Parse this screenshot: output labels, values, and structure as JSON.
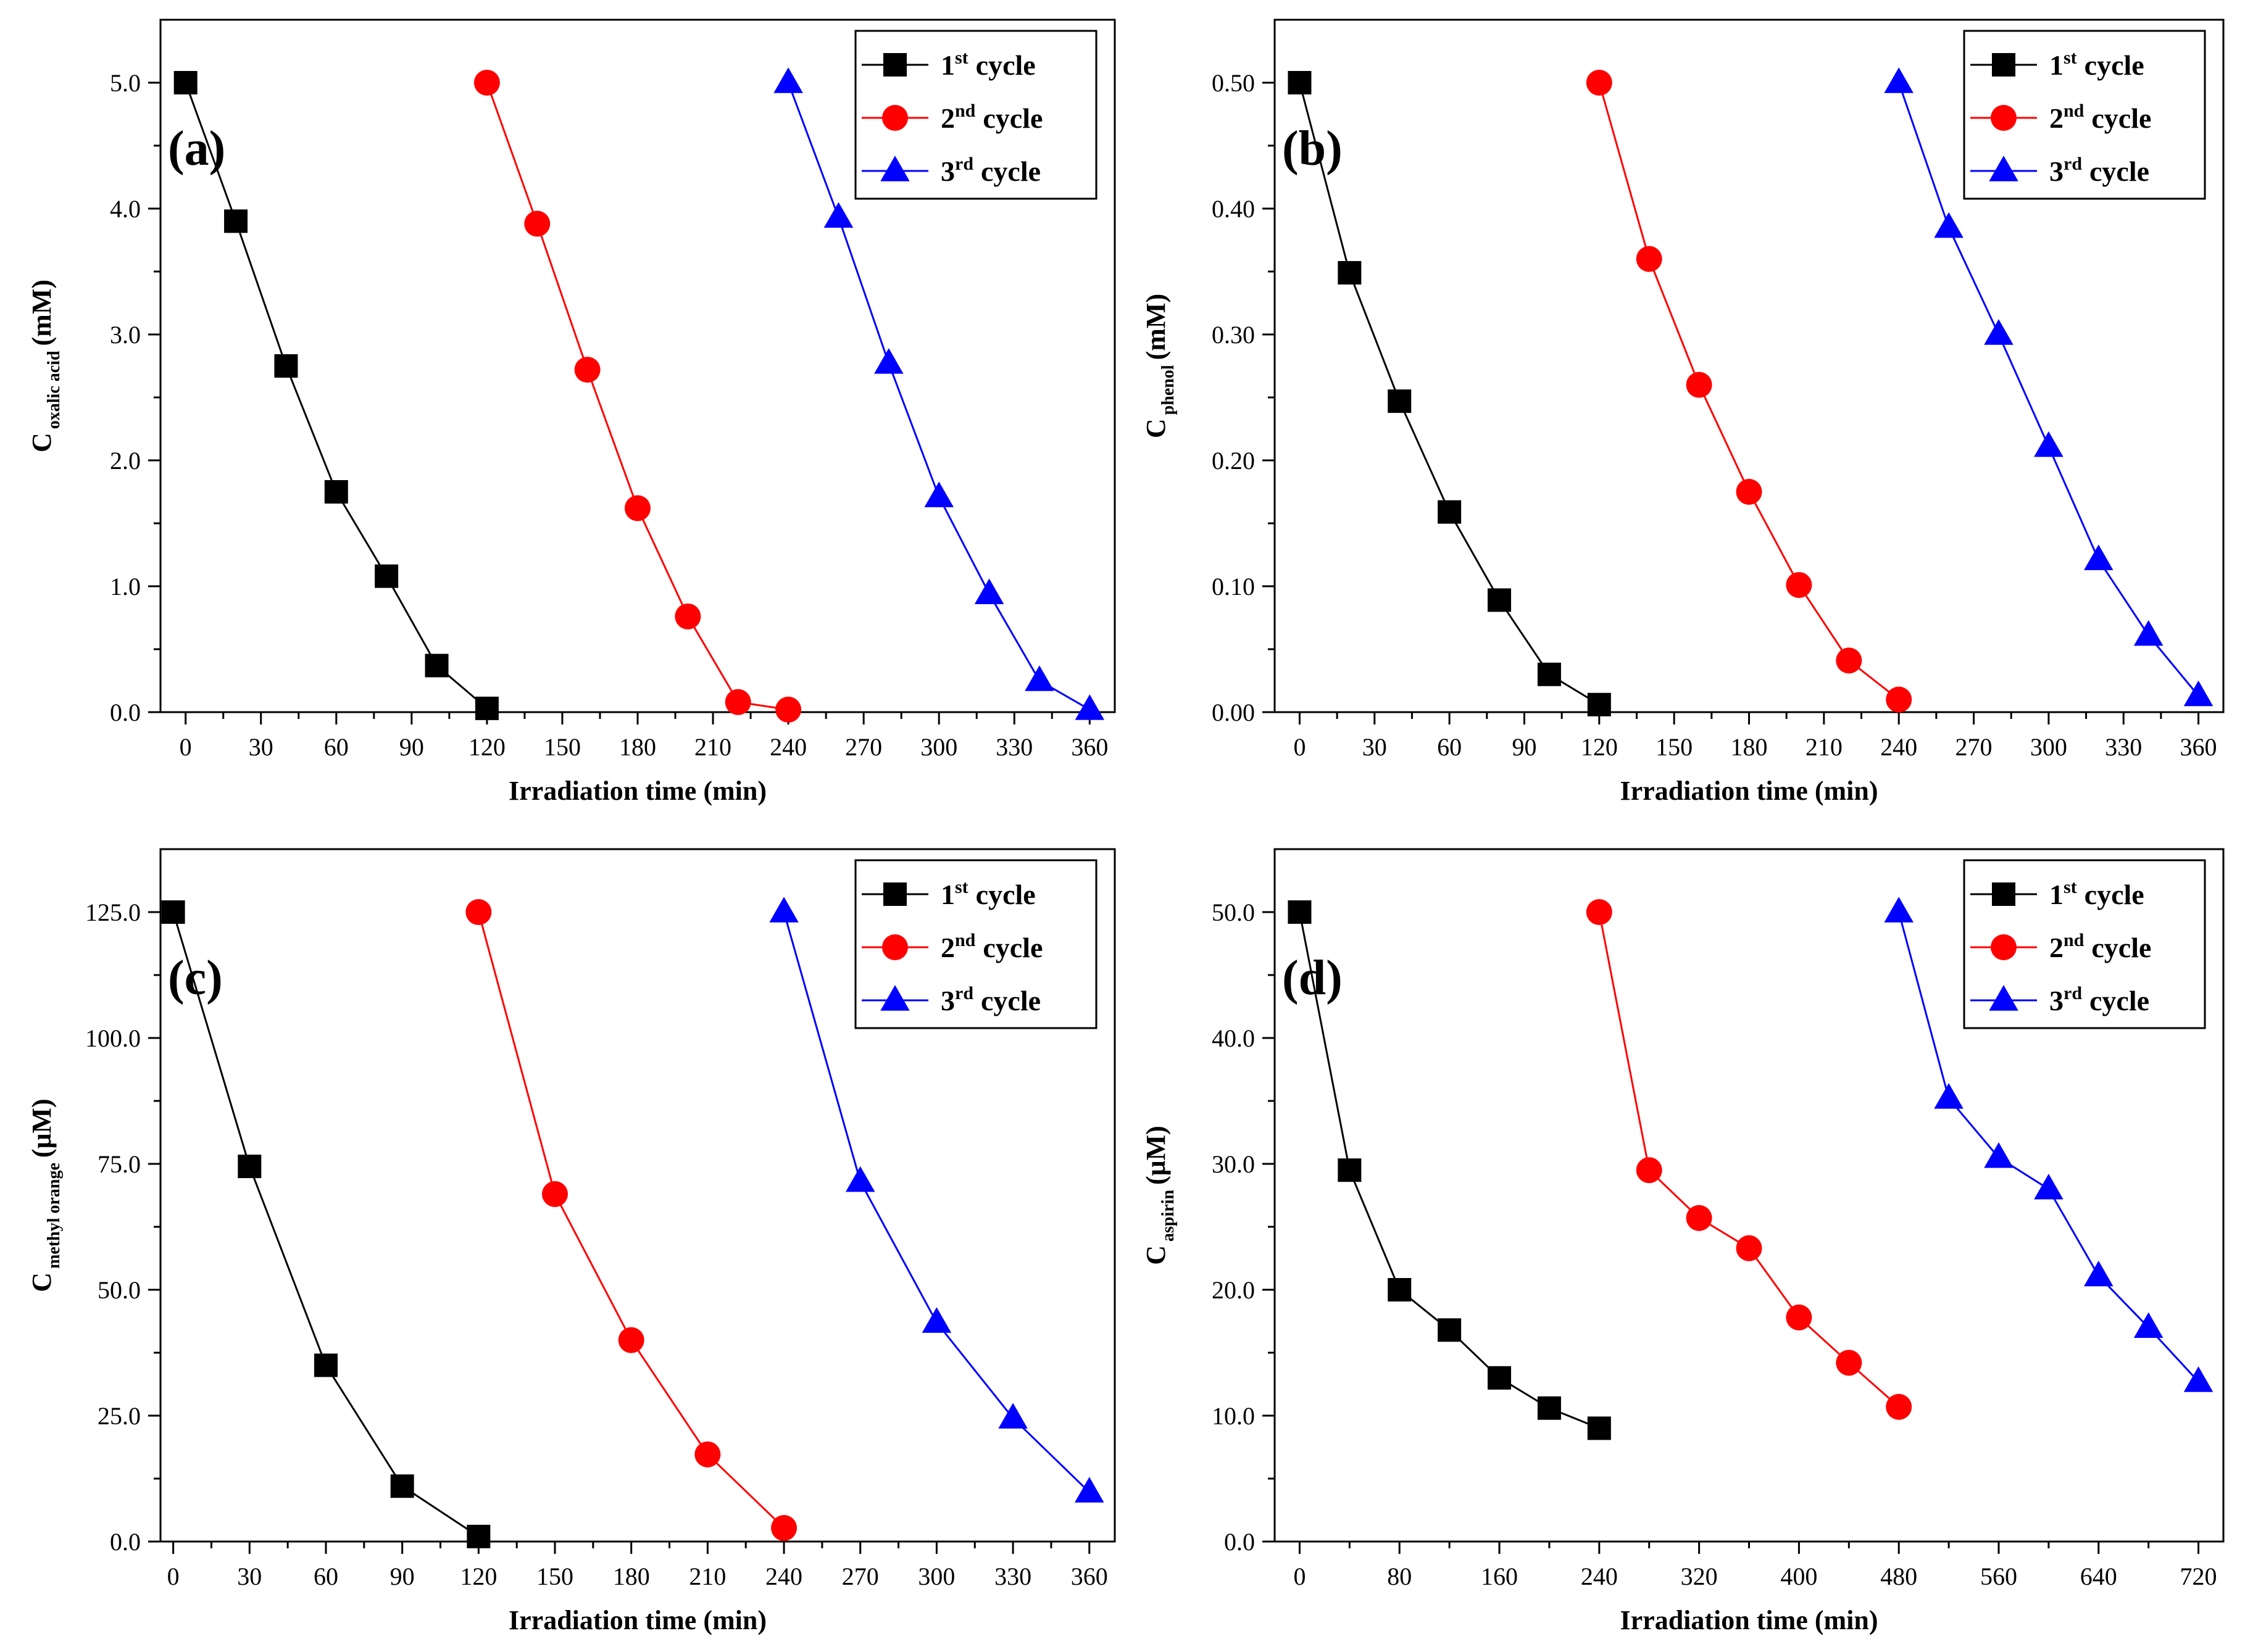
{
  "chart_data": [
    {
      "type": "line",
      "panel_label": "(a)",
      "xlabel": "Irradiation time (min)",
      "ylabel": {
        "main": "C",
        "sub": "oxalic acid",
        "unit": "(mM)"
      },
      "xlim": [
        -10,
        370
      ],
      "ylim": [
        0,
        5.5
      ],
      "xticks": [
        "0",
        "30",
        "60",
        "90",
        "120",
        "150",
        "180",
        "210",
        "240",
        "270",
        "300",
        "330",
        "360"
      ],
      "xtick_values": [
        0,
        30,
        60,
        90,
        120,
        150,
        180,
        210,
        240,
        270,
        300,
        330,
        360
      ],
      "yticks": [
        "0.0",
        "1.0",
        "2.0",
        "3.0",
        "4.0",
        "5.0"
      ],
      "ytick_values": [
        0,
        1,
        2,
        3,
        4,
        5
      ],
      "legend_position": "top-right",
      "series": [
        {
          "name": "1st cycle",
          "ordinal": "1",
          "sup": "st",
          "word": "cycle",
          "color": "#000000",
          "marker": "square",
          "x": [
            0,
            20,
            40,
            60,
            80,
            100,
            120
          ],
          "y": [
            5.0,
            3.9,
            2.75,
            1.75,
            1.08,
            0.37,
            0.03
          ]
        },
        {
          "name": "2nd cycle",
          "ordinal": "2",
          "sup": "nd",
          "word": "cycle",
          "color": "#ff0000",
          "marker": "circle",
          "x": [
            120,
            140,
            160,
            180,
            200,
            220,
            240
          ],
          "y": [
            5.0,
            3.88,
            2.72,
            1.62,
            0.76,
            0.08,
            0.02
          ]
        },
        {
          "name": "3rd cycle",
          "ordinal": "3",
          "sup": "rd",
          "word": "cycle",
          "color": "#0000ff",
          "marker": "triangle",
          "x": [
            240,
            260,
            280,
            300,
            320,
            340,
            360
          ],
          "y": [
            5.0,
            3.93,
            2.77,
            1.71,
            0.94,
            0.25,
            0.02
          ]
        }
      ]
    },
    {
      "type": "line",
      "panel_label": "(b)",
      "xlabel": "Irradiation time (min)",
      "ylabel": {
        "main": "C",
        "sub": "phenol",
        "unit": "(mM)"
      },
      "xlim": [
        -10,
        370
      ],
      "ylim": [
        0,
        0.55
      ],
      "xticks": [
        "0",
        "30",
        "60",
        "90",
        "120",
        "150",
        "180",
        "210",
        "240",
        "270",
        "300",
        "330",
        "360"
      ],
      "xtick_values": [
        0,
        30,
        60,
        90,
        120,
        150,
        180,
        210,
        240,
        270,
        300,
        330,
        360
      ],
      "yticks": [
        "0.00",
        "0.10",
        "0.20",
        "0.30",
        "0.40",
        "0.50"
      ],
      "ytick_values": [
        0,
        0.1,
        0.2,
        0.3,
        0.4,
        0.5
      ],
      "legend_position": "top-right",
      "series": [
        {
          "name": "1st cycle",
          "ordinal": "1",
          "sup": "st",
          "word": "cycle",
          "color": "#000000",
          "marker": "square",
          "x": [
            0,
            20,
            40,
            60,
            80,
            100,
            120
          ],
          "y": [
            0.5,
            0.349,
            0.247,
            0.159,
            0.089,
            0.03,
            0.006
          ]
        },
        {
          "name": "2nd cycle",
          "ordinal": "2",
          "sup": "nd",
          "word": "cycle",
          "color": "#ff0000",
          "marker": "circle",
          "x": [
            120,
            140,
            160,
            180,
            200,
            220,
            240
          ],
          "y": [
            0.5,
            0.36,
            0.26,
            0.175,
            0.101,
            0.041,
            0.01
          ]
        },
        {
          "name": "3rd cycle",
          "ordinal": "3",
          "sup": "rd",
          "word": "cycle",
          "color": "#0000ff",
          "marker": "triangle",
          "x": [
            240,
            260,
            280,
            300,
            320,
            340,
            360
          ],
          "y": [
            0.5,
            0.385,
            0.3,
            0.211,
            0.121,
            0.061,
            0.013
          ]
        }
      ]
    },
    {
      "type": "line",
      "panel_label": "(c)",
      "xlabel": "Irradiation time (min)",
      "ylabel": {
        "main": "C",
        "sub": "methyl orange",
        "unit": "(μM)"
      },
      "xlim": [
        -5,
        370
      ],
      "ylim": [
        0,
        137.5
      ],
      "xticks": [
        "0",
        "30",
        "60",
        "90",
        "120",
        "150",
        "180",
        "210",
        "240",
        "270",
        "300",
        "330",
        "360"
      ],
      "xtick_values": [
        0,
        30,
        60,
        90,
        120,
        150,
        180,
        210,
        240,
        270,
        300,
        330,
        360
      ],
      "yticks": [
        "0.0",
        "25.0",
        "50.0",
        "75.0",
        "100.0",
        "125.0"
      ],
      "ytick_values": [
        0,
        25,
        50,
        75,
        100,
        125
      ],
      "legend_position": "top-right",
      "series": [
        {
          "name": "1st cycle",
          "ordinal": "1",
          "sup": "st",
          "word": "cycle",
          "color": "#000000",
          "marker": "square",
          "x": [
            0,
            30,
            60,
            90,
            120
          ],
          "y": [
            125.0,
            74.5,
            35.0,
            11.0,
            1.0
          ]
        },
        {
          "name": "2nd cycle",
          "ordinal": "2",
          "sup": "nd",
          "word": "cycle",
          "color": "#ff0000",
          "marker": "circle",
          "x": [
            120,
            150,
            180,
            210,
            240
          ],
          "y": [
            125.0,
            69.0,
            40.0,
            17.3,
            2.7
          ]
        },
        {
          "name": "3rd cycle",
          "ordinal": "3",
          "sup": "rd",
          "word": "cycle",
          "color": "#0000ff",
          "marker": "triangle",
          "x": [
            240,
            270,
            300,
            330,
            360
          ],
          "y": [
            125.0,
            71.5,
            43.5,
            24.5,
            9.8
          ]
        }
      ]
    },
    {
      "type": "line",
      "panel_label": "(d)",
      "xlabel": "Irradiation time (min)",
      "ylabel": {
        "main": "C",
        "sub": "aspirin",
        "unit": "(μM)"
      },
      "xlim": [
        -20,
        740
      ],
      "ylim": [
        0,
        55
      ],
      "xticks": [
        "0",
        "80",
        "160",
        "240",
        "320",
        "400",
        "480",
        "560",
        "640",
        "720"
      ],
      "xtick_values": [
        0,
        80,
        160,
        240,
        320,
        400,
        480,
        560,
        640,
        720
      ],
      "yticks": [
        "0.0",
        "10.0",
        "20.0",
        "30.0",
        "40.0",
        "50.0"
      ],
      "ytick_values": [
        0,
        10,
        20,
        30,
        40,
        50
      ],
      "legend_position": "top-right",
      "series": [
        {
          "name": "1st cycle",
          "ordinal": "1",
          "sup": "st",
          "word": "cycle",
          "color": "#000000",
          "marker": "square",
          "x": [
            0,
            40,
            80,
            120,
            160,
            200,
            240
          ],
          "y": [
            50.0,
            29.5,
            20.0,
            16.8,
            13.0,
            10.6,
            9.0
          ]
        },
        {
          "name": "2nd cycle",
          "ordinal": "2",
          "sup": "nd",
          "word": "cycle",
          "color": "#ff0000",
          "marker": "circle",
          "x": [
            240,
            280,
            320,
            360,
            400,
            440,
            480
          ],
          "y": [
            50.0,
            29.5,
            25.7,
            23.3,
            17.8,
            14.2,
            10.7
          ]
        },
        {
          "name": "3rd cycle",
          "ordinal": "3",
          "sup": "rd",
          "word": "cycle",
          "color": "#0000ff",
          "marker": "triangle",
          "x": [
            480,
            520,
            560,
            600,
            640,
            680,
            720
          ],
          "y": [
            50.0,
            35.2,
            30.5,
            28.0,
            21.1,
            17.0,
            12.7
          ]
        }
      ]
    }
  ]
}
